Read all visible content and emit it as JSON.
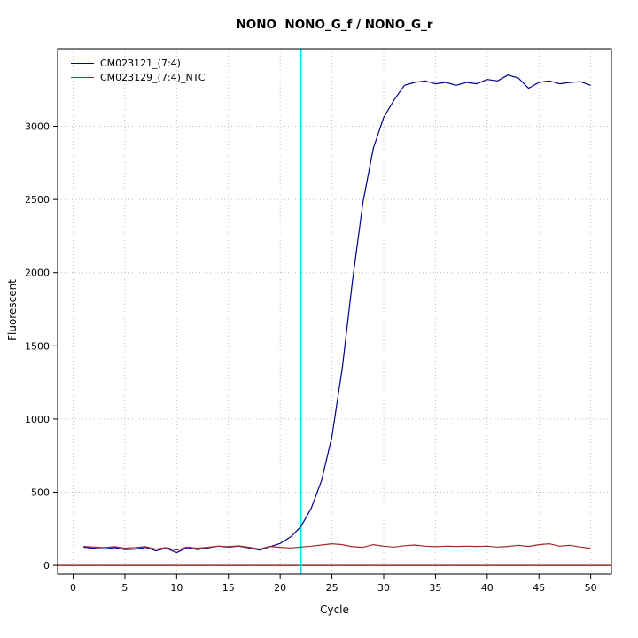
{
  "chart_data": {
    "type": "line",
    "title": "NONO  NONO_G_f / NONO_G_r",
    "xlabel": "Cycle",
    "ylabel": "Fluorescent",
    "xlim": [
      -1.5,
      52
    ],
    "ylim": [
      -60,
      3530
    ],
    "x_ticks": [
      0,
      5,
      10,
      15,
      20,
      25,
      30,
      35,
      40,
      45,
      50
    ],
    "y_ticks": [
      0,
      500,
      1000,
      1500,
      2000,
      2500,
      3000
    ],
    "grid": true,
    "legend_position": "top-left",
    "x": [
      1,
      2,
      3,
      4,
      5,
      6,
      7,
      8,
      9,
      10,
      11,
      12,
      13,
      14,
      15,
      16,
      17,
      18,
      19,
      20,
      21,
      22,
      23,
      24,
      25,
      26,
      27,
      28,
      29,
      30,
      31,
      32,
      33,
      34,
      35,
      36,
      37,
      38,
      39,
      40,
      41,
      42,
      43,
      44,
      45,
      46,
      47,
      48,
      49,
      50
    ],
    "series": [
      {
        "name": "CM023121_(7:4)",
        "color": "#00008B",
        "values": [
          125,
          118,
          112,
          122,
          108,
          112,
          124,
          100,
          118,
          88,
          122,
          108,
          120,
          132,
          125,
          132,
          120,
          105,
          128,
          150,
          195,
          265,
          390,
          580,
          880,
          1350,
          1950,
          2480,
          2850,
          3060,
          3180,
          3280,
          3300,
          3310,
          3290,
          3300,
          3280,
          3300,
          3290,
          3320,
          3310,
          3350,
          3330,
          3260,
          3300,
          3310,
          3290,
          3300,
          3305,
          3280
        ]
      },
      {
        "name": "CM023129_(7:4)_NTC",
        "color": "#A52A2A",
        "values": [
          130,
          126,
          122,
          128,
          118,
          122,
          128,
          112,
          122,
          105,
          126,
          118,
          124,
          132,
          128,
          134,
          124,
          112,
          130,
          124,
          120,
          126,
          132,
          140,
          148,
          142,
          128,
          124,
          142,
          132,
          126,
          135,
          140,
          132,
          128,
          132,
          130,
          132,
          130,
          132,
          126,
          130,
          138,
          130,
          142,
          148,
          132,
          138,
          126,
          118
        ]
      }
    ],
    "threshold_line": {
      "x": 22,
      "color": "#00E5EE"
    },
    "baseline": {
      "y": 0,
      "color": "#8B0000"
    },
    "grid_color": "#BEBEBE",
    "box_color": "#000000"
  }
}
